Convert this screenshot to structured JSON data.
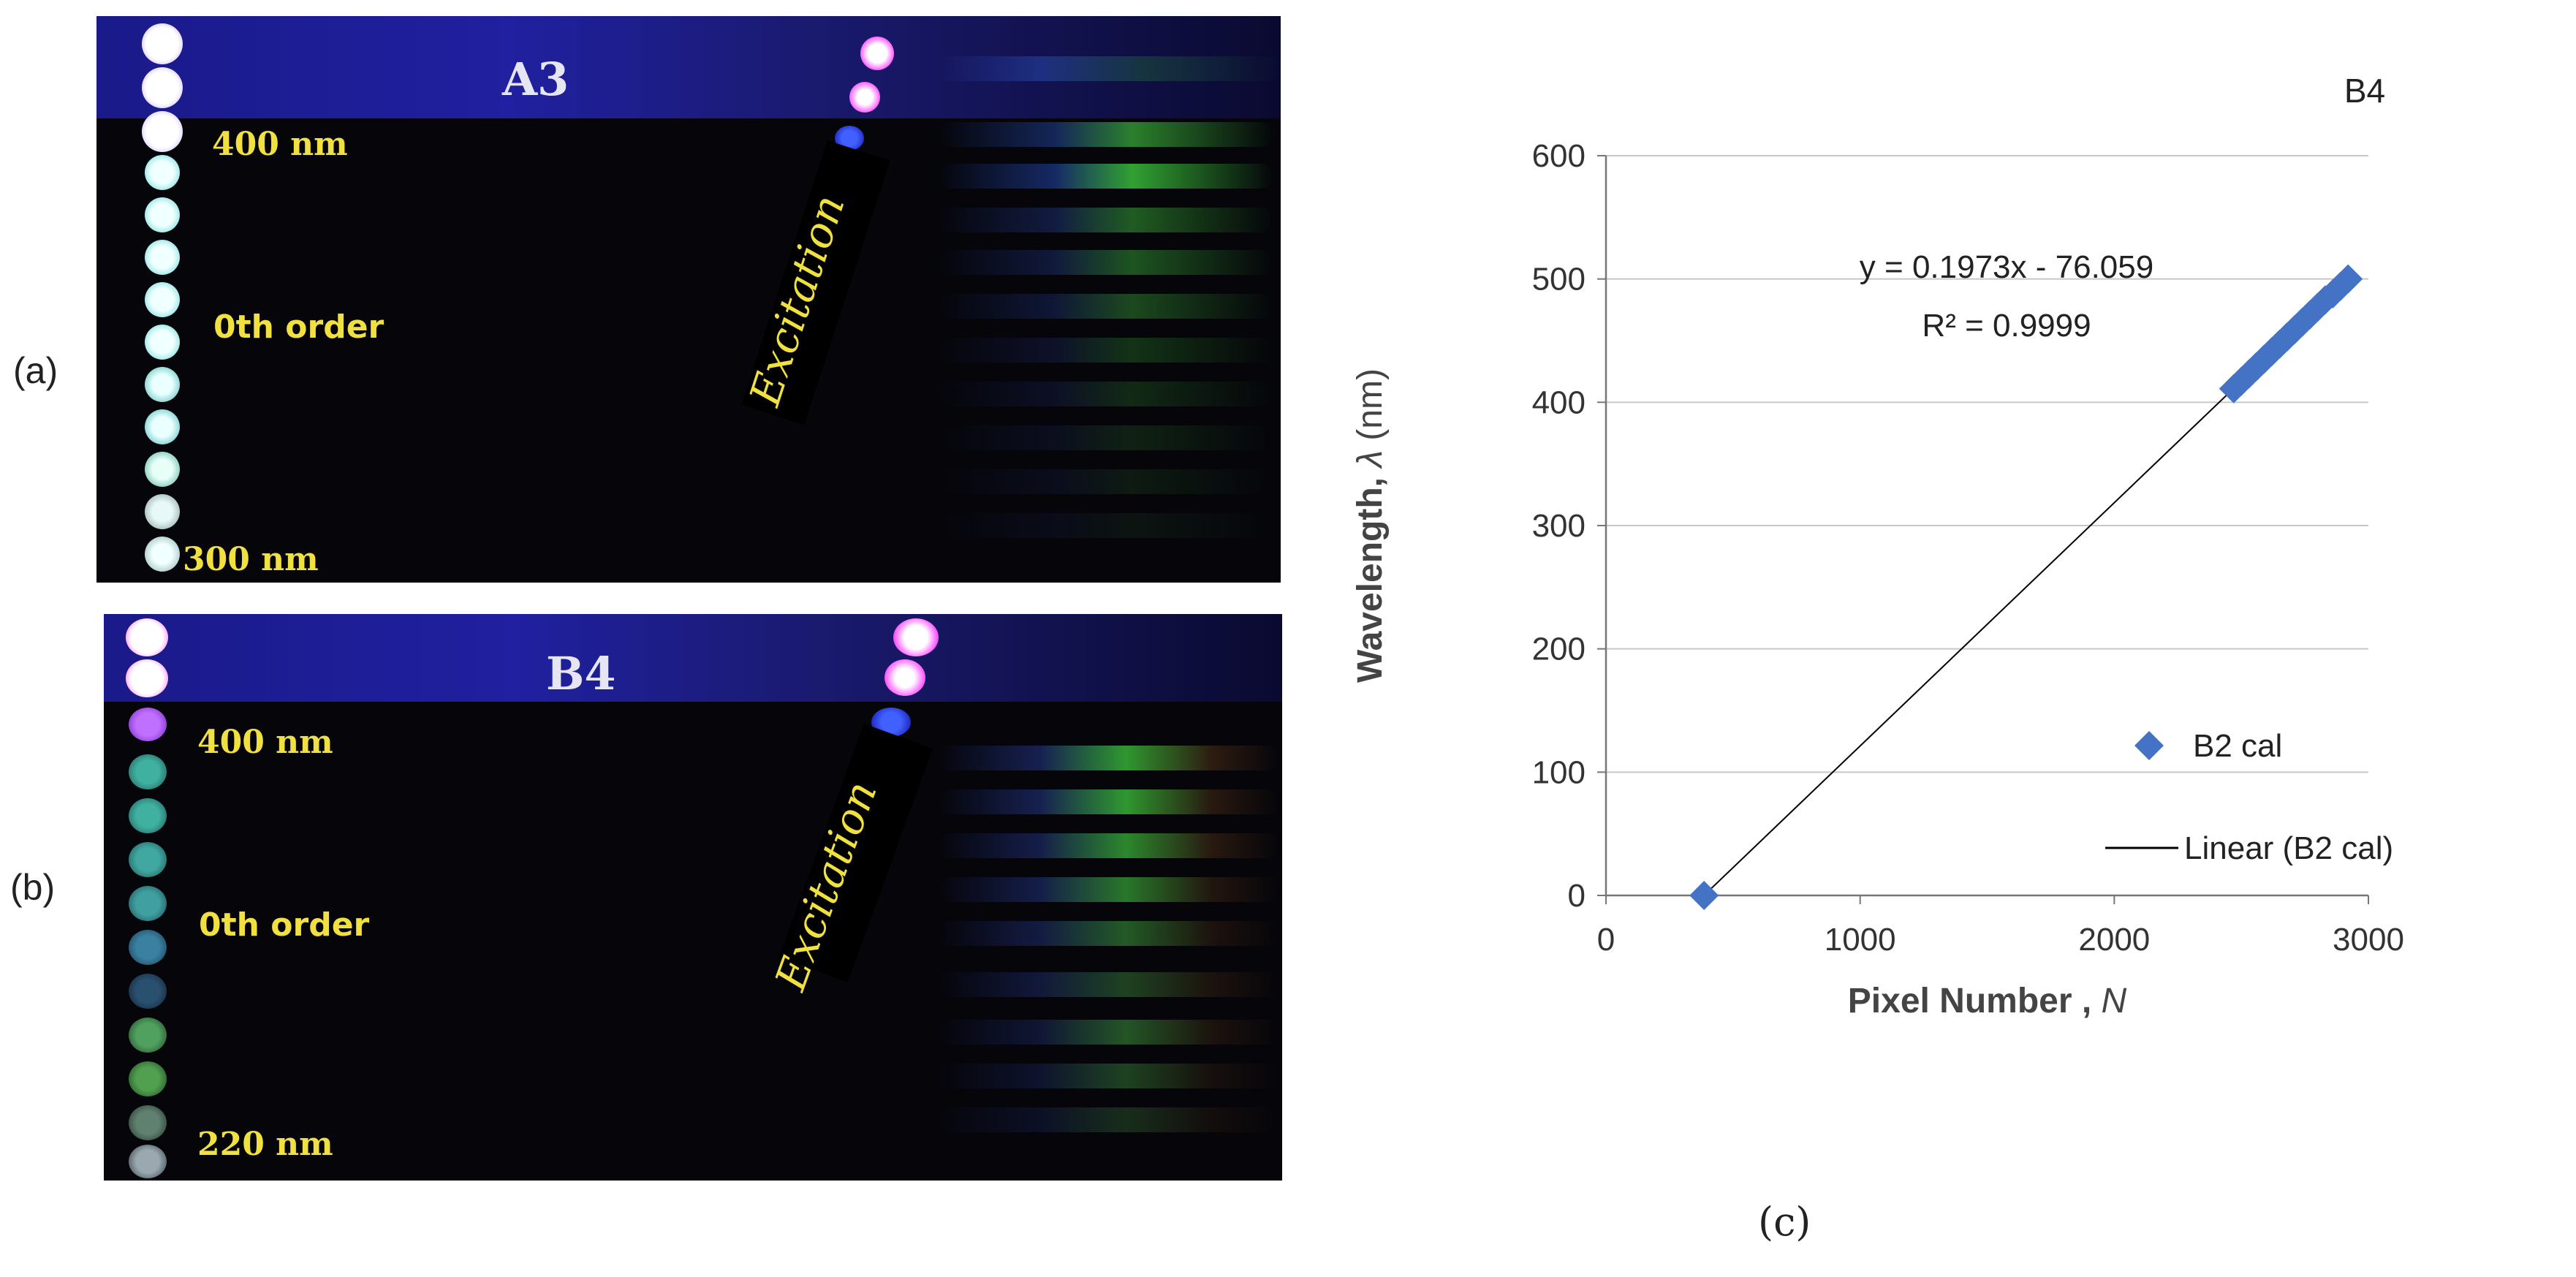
{
  "panel_a": {
    "label": "(a)",
    "title": "A3",
    "top_wavelength": "400 nm",
    "middle_label": "0th order",
    "bottom_wavelength": "300 nm",
    "excitation": "Excitation"
  },
  "panel_b": {
    "label": "(b)",
    "title": "B4",
    "top_wavelength": "400 nm",
    "middle_label": "0th order",
    "bottom_wavelength": "220 nm",
    "excitation": "Excitation"
  },
  "panel_c": {
    "label": "(c)"
  },
  "chart_data": {
    "type": "scatter",
    "title": "B4",
    "xlabel": "Pixel Number",
    "xlabel_symbol": "N",
    "ylabel": "Wavelength,",
    "ylabel_symbol": "λ",
    "ylabel_unit": "(nm)",
    "xlim": [
      0,
      3000
    ],
    "ylim": [
      0,
      600
    ],
    "xticks": [
      "0",
      "1000",
      "2000",
      "3000"
    ],
    "yticks": [
      "0",
      "100",
      "200",
      "300",
      "400",
      "500",
      "600"
    ],
    "grid": true,
    "equation": "y = 0.1973x - 76.059",
    "r_squared": "R² = 0.9999",
    "trendline": {
      "slope": 0.1973,
      "intercept": -76.059,
      "x_range": [
        386,
        2920
      ]
    },
    "series": [
      {
        "name": "B2 cal",
        "marker": "diamond",
        "color": "#4472C4",
        "points": [
          [
            386,
            0
          ],
          [
            2470,
            411
          ],
          [
            2500,
            417
          ],
          [
            2530,
            423
          ],
          [
            2560,
            429
          ],
          [
            2590,
            435
          ],
          [
            2620,
            441
          ],
          [
            2650,
            447
          ],
          [
            2680,
            453
          ],
          [
            2710,
            459
          ],
          [
            2740,
            465
          ],
          [
            2770,
            471
          ],
          [
            2800,
            477
          ],
          [
            2830,
            483
          ],
          [
            2860,
            488
          ],
          [
            2890,
            494
          ],
          [
            2920,
            500
          ]
        ]
      }
    ],
    "legend": [
      {
        "label": "B2 cal",
        "kind": "marker"
      },
      {
        "label": "Linear (B2 cal)",
        "kind": "line"
      }
    ],
    "legend_position": "bottom-right"
  }
}
